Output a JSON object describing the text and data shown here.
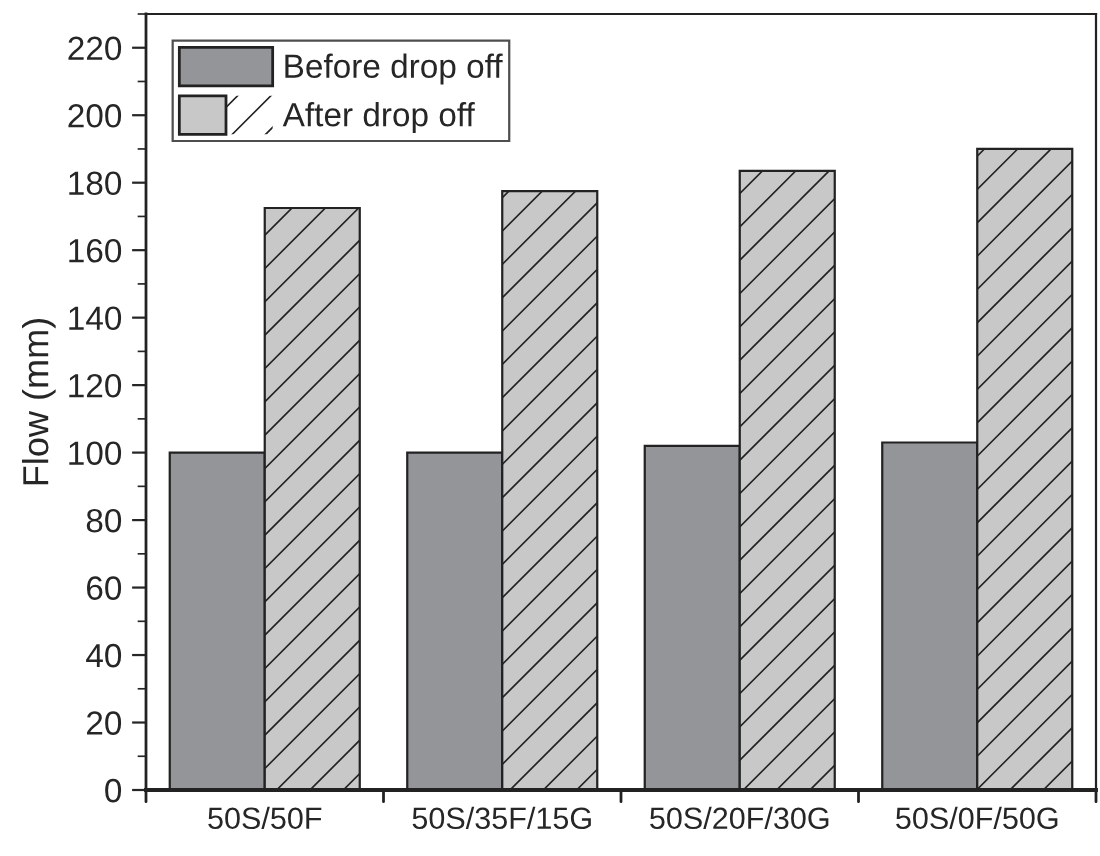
{
  "chart_data": {
    "type": "bar",
    "ylabel": "Flow (mm)",
    "categories": [
      "50S/50F",
      "50S/35F/15G",
      "50S/20F/30G",
      "50S/0F/50G"
    ],
    "series": [
      {
        "name": "Before drop off",
        "color": "#939598",
        "values": [
          100,
          100,
          102,
          103
        ]
      },
      {
        "name": "After drop off",
        "color": "#c8c8c8",
        "values": [
          172.5,
          177.5,
          183.5,
          190
        ]
      }
    ],
    "ylim": [
      0,
      230
    ],
    "yticks": [
      0,
      20,
      40,
      60,
      80,
      100,
      120,
      140,
      160,
      180,
      200,
      220
    ],
    "grid": false,
    "legend": "top left"
  }
}
